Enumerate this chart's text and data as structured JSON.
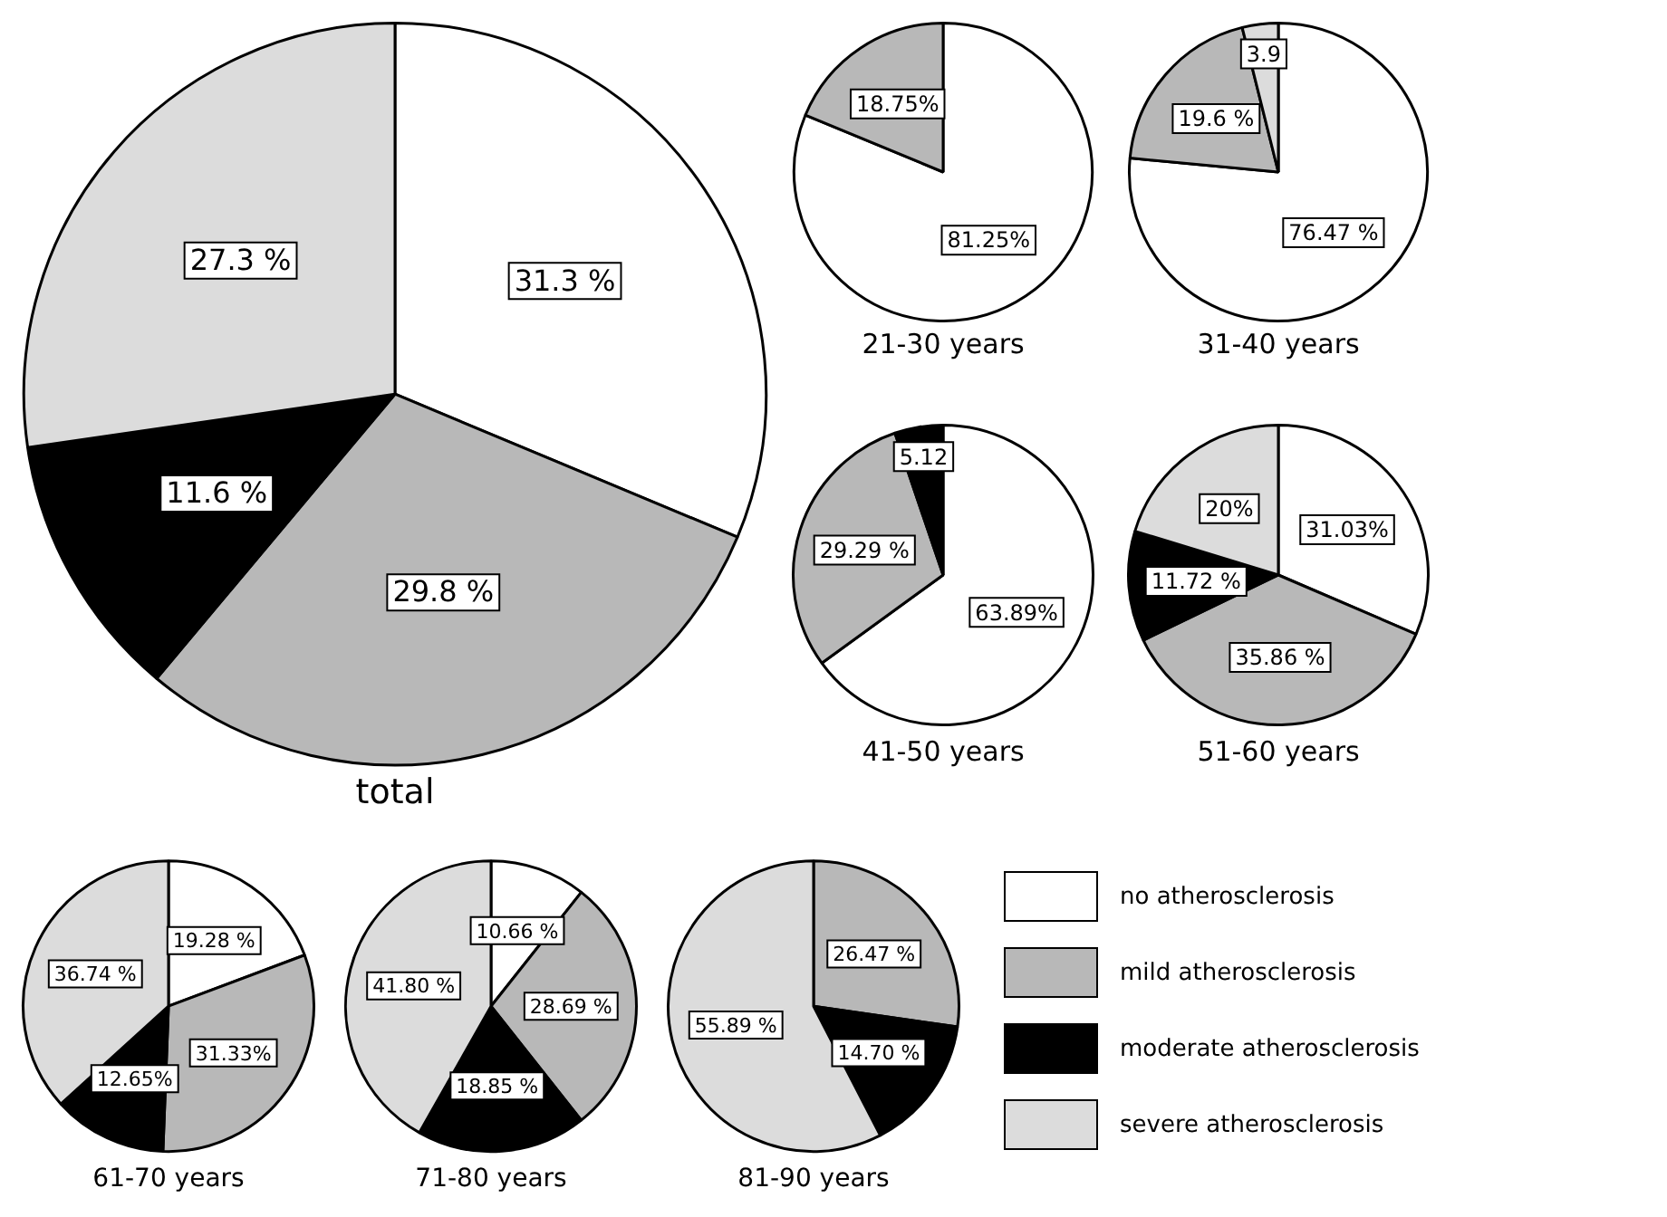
{
  "chart_data": [
    {
      "type": "pie",
      "title": "total",
      "categories": [
        null,
        null,
        null,
        null
      ],
      "values": [
        31.3,
        29.8,
        11.6,
        27.3
      ],
      "colors": [
        "#ffffff",
        "#b8b8b8",
        "#000000",
        "#dcdcdc"
      ],
      "value_labels": [
        "31.3 %",
        "29.8 %",
        "11.6 %",
        "27.3 %"
      ]
    },
    {
      "type": "pie",
      "title": "21-30 years",
      "categories": [
        null,
        null,
        null,
        null
      ],
      "values": [
        81.25,
        18.75,
        null,
        null
      ],
      "colors": [
        "#ffffff",
        "#b8b8b8",
        "#000000",
        "#dcdcdc"
      ],
      "value_labels": [
        "81.25%",
        "18.75%",
        null,
        null
      ]
    },
    {
      "type": "pie",
      "title": "31-40 years",
      "categories": [
        null,
        null,
        null,
        null
      ],
      "values": [
        76.47,
        19.6,
        null,
        3.9
      ],
      "colors": [
        "#ffffff",
        "#b8b8b8",
        "#000000",
        "#dcdcdc"
      ],
      "value_labels": [
        "76.47 %",
        "19.6 %",
        null,
        "3.9"
      ]
    },
    {
      "type": "pie",
      "title": "41-50 years",
      "categories": [
        null,
        null,
        null,
        null
      ],
      "values": [
        63.89,
        29.29,
        5.12,
        null
      ],
      "colors": [
        "#ffffff",
        "#b8b8b8",
        "#000000",
        "#dcdcdc"
      ],
      "value_labels": [
        "63.89%",
        "29.29 %",
        "5.12",
        null
      ]
    },
    {
      "type": "pie",
      "title": "51-60 years",
      "categories": [
        null,
        null,
        null,
        null
      ],
      "values": [
        31.03,
        35.86,
        11.72,
        20
      ],
      "colors": [
        "#ffffff",
        "#b8b8b8",
        "#000000",
        "#dcdcdc"
      ],
      "value_labels": [
        "31.03%",
        "35.86 %",
        "11.72 %",
        "20%"
      ]
    },
    {
      "type": "pie",
      "title": "61-70 years",
      "categories": [
        null,
        null,
        null,
        null
      ],
      "values": [
        19.28,
        31.33,
        12.65,
        36.74
      ],
      "colors": [
        "#ffffff",
        "#b8b8b8",
        "#000000",
        "#dcdcdc"
      ],
      "value_labels": [
        "19.28 %",
        "31.33%",
        "12.65%",
        "36.74 %"
      ]
    },
    {
      "type": "pie",
      "title": "71-80 years",
      "categories": [
        null,
        null,
        null,
        null
      ],
      "values": [
        10.66,
        28.69,
        18.85,
        41.8
      ],
      "colors": [
        "#ffffff",
        "#b8b8b8",
        "#000000",
        "#dcdcdc"
      ],
      "value_labels": [
        "10.66 %",
        "28.69 %",
        "18.85 %",
        "41.80 %"
      ]
    },
    {
      "type": "pie",
      "title": "81-90 years",
      "categories": [
        "no atherosclerosis",
        "mild atherosclerosis",
        "moderate atherosclerosis",
        "severe atherosclerosis"
      ],
      "values": [
        null,
        26.47,
        14.7,
        55.89
      ],
      "colors": [
        "#ffffff",
        "#b8b8b8",
        "#000000",
        "#dcdcdc"
      ],
      "value_labels": [
        null,
        "26.47 %",
        "14.70 %",
        "55.89 %"
      ],
      "legend": "right"
    }
  ]
}
